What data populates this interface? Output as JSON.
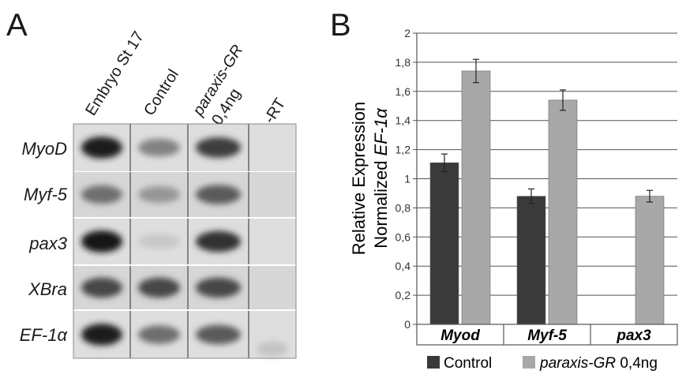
{
  "panel_a": {
    "letter": "A",
    "columns": [
      "Embryo St 17",
      "Control",
      "paraxis-GR",
      "0,4ng",
      "-RT"
    ],
    "rows": [
      "MyoD",
      "Myf-5",
      "pax3",
      "XBra",
      "EF-1α"
    ],
    "band_intensity": [
      [
        0.95,
        0.45,
        0.8,
        0
      ],
      [
        0.55,
        0.35,
        0.65,
        0
      ],
      [
        0.98,
        0.1,
        0.85,
        0
      ],
      [
        0.75,
        0.75,
        0.75,
        0
      ],
      [
        0.95,
        0.55,
        0.65,
        0.12
      ]
    ]
  },
  "panel_b": {
    "letter": "B"
  },
  "chart_data": {
    "type": "bar",
    "categories": [
      "Myod",
      "Myf-5",
      "pax3"
    ],
    "series": [
      {
        "name": "Control",
        "values": [
          1.11,
          0.88,
          null
        ],
        "errors": [
          0.06,
          0.05,
          null
        ],
        "color": "#3a3a3a"
      },
      {
        "name": "paraxis-GR 0,4ng",
        "values": [
          1.74,
          1.54,
          0.88
        ],
        "errors": [
          0.08,
          0.07,
          0.04
        ],
        "color": "#a8a8a8"
      }
    ],
    "ylabel_line1": "Relative Expression",
    "ylabel_line2": "Normalized EF-1α",
    "ylim": [
      0,
      2
    ],
    "yticks": [
      "0",
      "0,2",
      "0,4",
      "0,6",
      "0,8",
      "1",
      "1,2",
      "1,4",
      "1,6",
      "1,8",
      "2"
    ],
    "grid": true,
    "legend_position": "bottom",
    "legend": [
      "Control",
      "paraxis-GR 0,4ng"
    ],
    "legend_italic": "paraxis-GR",
    "legend_plain": " 0,4ng"
  }
}
